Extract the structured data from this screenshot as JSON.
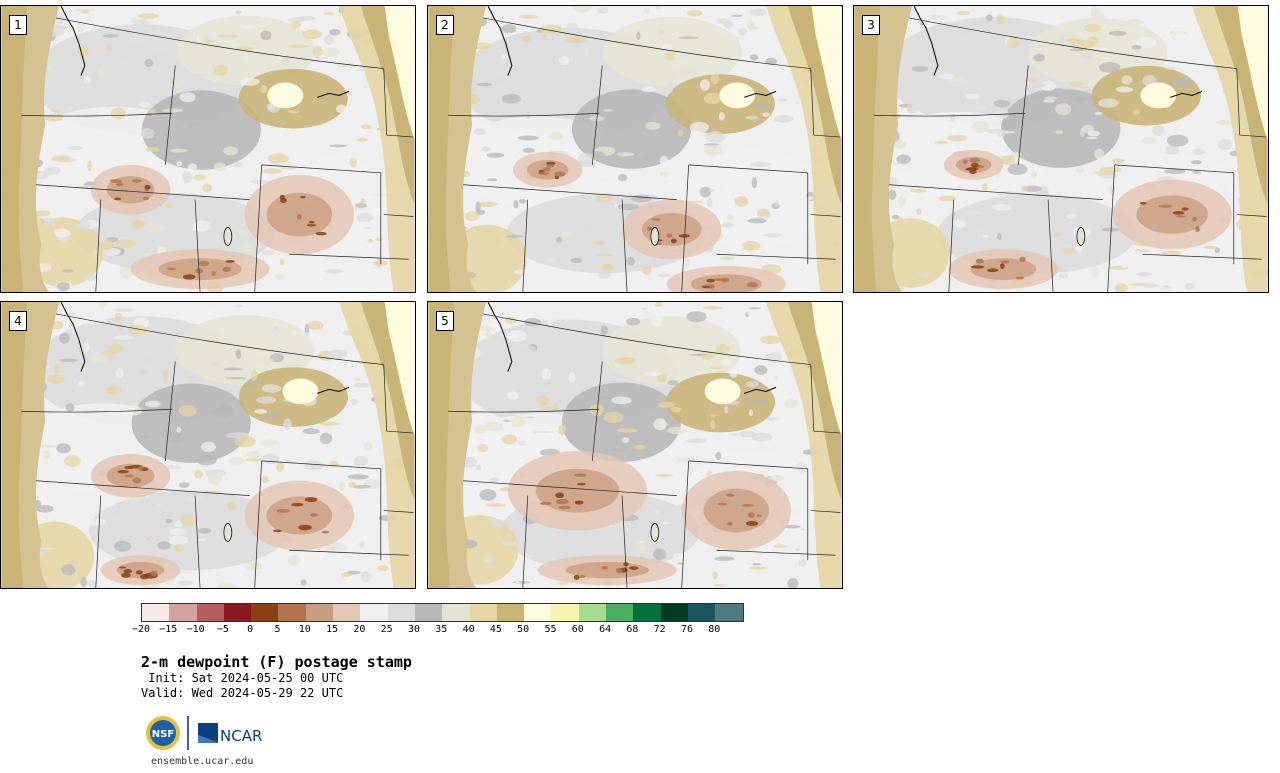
{
  "panels": [
    {
      "label": "1",
      "variant": 0
    },
    {
      "label": "2",
      "variant": 1
    },
    {
      "label": "3",
      "variant": 2
    },
    {
      "label": "4",
      "variant": 3
    },
    {
      "label": "5",
      "variant": 4
    }
  ],
  "colorbar": {
    "colors": [
      "#f6e9e9",
      "#d4a1a1",
      "#b55c5c",
      "#8a1a20",
      "#8a4010",
      "#b07550",
      "#c99e80",
      "#e4c7b4",
      "#efefef",
      "#dcdcdc",
      "#b8b8b8",
      "#e4e4d6",
      "#e6d6a6",
      "#c9b478",
      "#fffbde",
      "#f8f6ae",
      "#a6dc8e",
      "#4caf60",
      "#00703c",
      "#003a22",
      "#1a5560",
      "#4e7a80"
    ],
    "tick_labels": [
      "−20",
      "−15",
      "−10",
      "−5",
      "0",
      "5",
      "10",
      "15",
      "20",
      "25",
      "30",
      "35",
      "40",
      "45",
      "50",
      "55",
      "60",
      "64",
      "68",
      "72",
      "76",
      "80"
    ]
  },
  "title": "2-m dewpoint (F) postage stamp",
  "init": " Init: Sat 2024-05-25 00 UTC",
  "valid": "Valid: Wed 2024-05-29 22 UTC",
  "logos": {
    "nsf": "NSF",
    "ncar": "NCAR"
  },
  "site": "ensemble.ucar.edu"
}
